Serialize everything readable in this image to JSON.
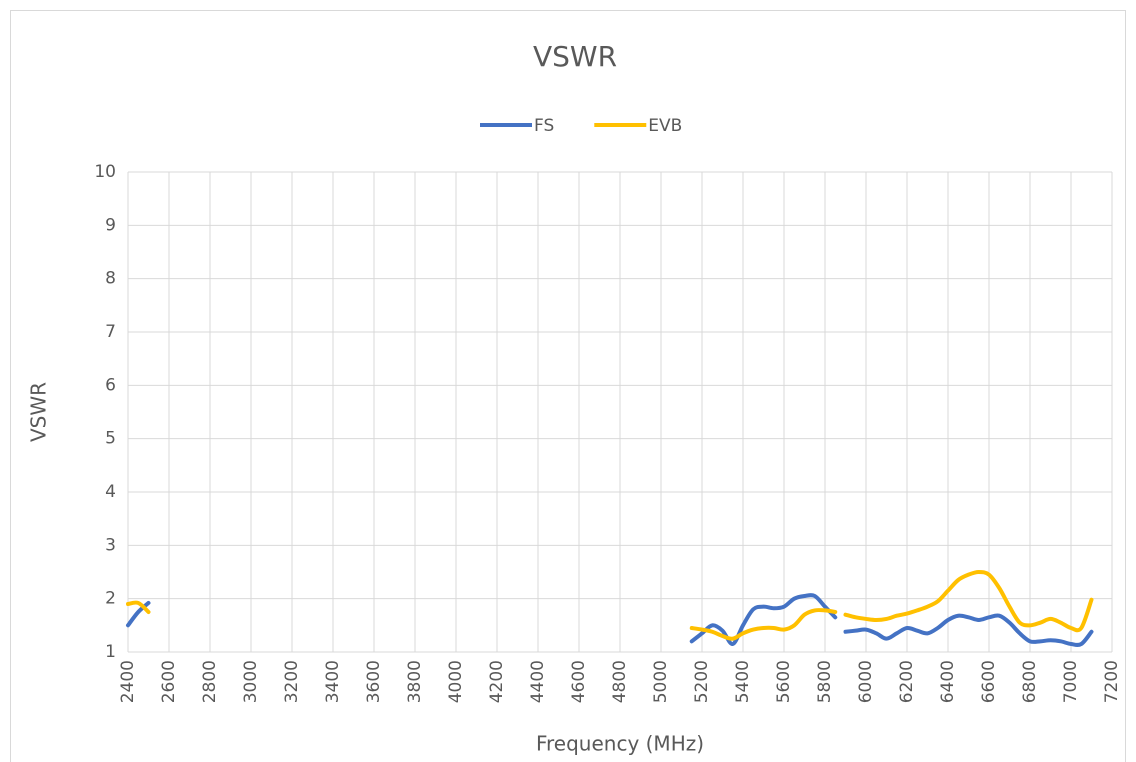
{
  "chart_data": {
    "type": "line",
    "title": "VSWR",
    "x_label": "Frequency (MHz)",
    "y_label": "VSWR",
    "x": [
      2400,
      2450,
      2500,
      2550,
      5150,
      5200,
      5250,
      5300,
      5350,
      5400,
      5450,
      5500,
      5550,
      5600,
      5650,
      5700,
      5750,
      5800,
      5850,
      5875,
      5900,
      5950,
      6000,
      6050,
      6100,
      6150,
      6200,
      6250,
      6300,
      6350,
      6400,
      6450,
      6500,
      6550,
      6600,
      6650,
      6700,
      6750,
      6800,
      6850,
      6900,
      6950,
      7000,
      7050,
      7100
    ],
    "series": [
      {
        "name": "FS",
        "color": "#4472c4",
        "values": [
          1.5,
          1.75,
          1.92,
          null,
          1.2,
          1.35,
          1.5,
          1.4,
          1.15,
          1.5,
          1.8,
          1.85,
          1.82,
          1.85,
          2.0,
          2.05,
          2.05,
          1.85,
          1.65,
          null,
          1.38,
          1.4,
          1.42,
          1.35,
          1.25,
          1.35,
          1.45,
          1.4,
          1.35,
          1.45,
          1.6,
          1.68,
          1.65,
          1.6,
          1.65,
          1.68,
          1.55,
          1.35,
          1.2,
          1.2,
          1.22,
          1.2,
          1.15,
          1.15,
          1.38
        ]
      },
      {
        "name": "EVB",
        "color": "#ffc000",
        "values": [
          1.9,
          1.92,
          1.75,
          null,
          1.45,
          1.42,
          1.38,
          1.3,
          1.25,
          1.35,
          1.42,
          1.45,
          1.45,
          1.42,
          1.5,
          1.7,
          1.78,
          1.78,
          1.75,
          null,
          1.7,
          1.65,
          1.62,
          1.6,
          1.62,
          1.68,
          1.72,
          1.78,
          1.85,
          1.95,
          2.15,
          2.35,
          2.45,
          2.5,
          2.45,
          2.2,
          1.85,
          1.55,
          1.5,
          1.55,
          1.62,
          1.55,
          1.45,
          1.45,
          1.98
        ]
      }
    ],
    "xlim": [
      2400,
      7200
    ],
    "xticks": [
      2400,
      2600,
      2800,
      3000,
      3200,
      3400,
      3600,
      3800,
      4000,
      4200,
      4400,
      4600,
      4800,
      5000,
      5200,
      5400,
      5600,
      5800,
      6000,
      6200,
      6400,
      6600,
      6800,
      7000,
      7200
    ],
    "ylim": [
      1,
      10
    ],
    "yticks": [
      1,
      2,
      3,
      4,
      5,
      6,
      7,
      8,
      9,
      10
    ],
    "grid": true,
    "legend": "top"
  }
}
